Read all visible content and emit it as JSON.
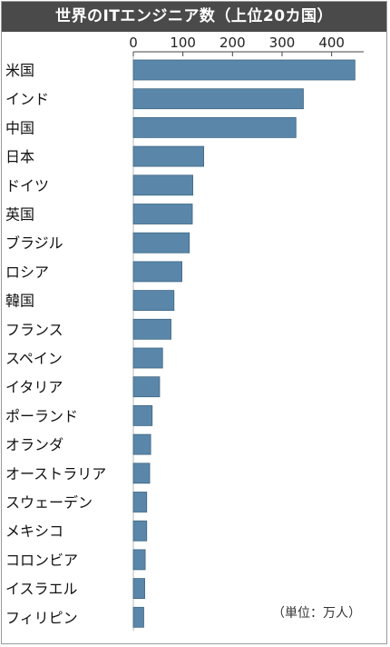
{
  "chart_data": {
    "type": "bar",
    "orientation": "horizontal",
    "title": "世界のITエンジニア数（上位20カ国）",
    "unit_note": "（単位：万人）",
    "xlim": [
      0,
      450
    ],
    "xticks": [
      0,
      100,
      200,
      300,
      400
    ],
    "categories": [
      "米国",
      "インド",
      "中国",
      "日本",
      "ドイツ",
      "英国",
      "ブラジル",
      "ロシア",
      "韓国",
      "フランス",
      "スペイン",
      "イタリア",
      "ポーランド",
      "オランダ",
      "オーストラリア",
      "スウェーデン",
      "メキシコ",
      "コロンビア",
      "イスラエル",
      "フィリピン"
    ],
    "values": [
      447,
      343,
      328,
      142,
      120,
      119,
      113,
      98,
      82,
      76,
      59,
      53,
      38,
      35,
      33,
      27,
      27,
      24,
      23,
      21
    ],
    "grid": false,
    "legend": "none"
  },
  "colors": {
    "bar": "#5a87a9",
    "bar_edge": "#3d6684",
    "title_bg": "#4a4a4a",
    "title_text": "#ffffff",
    "axis": "#444444"
  }
}
